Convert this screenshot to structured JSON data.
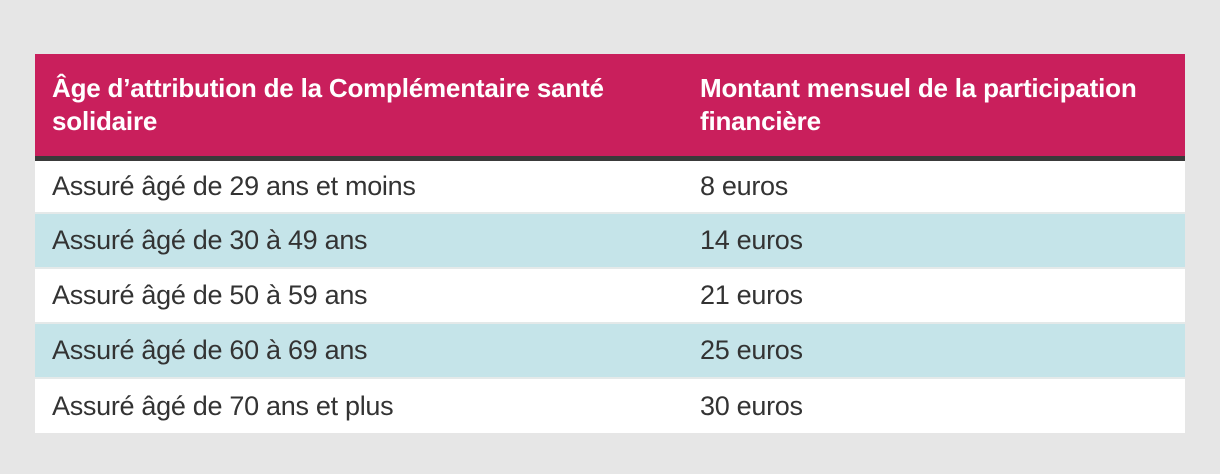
{
  "table": {
    "headers": [
      "Âge d’attribution de la Complémentaire santé solidaire",
      "Montant mensuel de la participation financière"
    ],
    "rows": [
      {
        "age": "Assuré âgé de 29 ans et moins",
        "amount": "8 euros"
      },
      {
        "age": "Assuré âgé de 30 à 49 ans",
        "amount": "14 euros"
      },
      {
        "age": "Assuré âgé de 50 à 59 ans",
        "amount": "21 euros"
      },
      {
        "age": "Assuré âgé de 60 à 69 ans",
        "amount": "25 euros"
      },
      {
        "age": "Assuré âgé de 70 ans et plus",
        "amount": "30 euros"
      }
    ]
  },
  "colors": {
    "page_background": "#e6e6e6",
    "header_background": "#c91f5c",
    "header_text": "#ffffff",
    "header_divider": "#3a3a3a",
    "row_background": "#ffffff",
    "row_alt_background": "#c5e4e9",
    "row_separator": "#e4e9e9",
    "body_text": "#333333"
  }
}
